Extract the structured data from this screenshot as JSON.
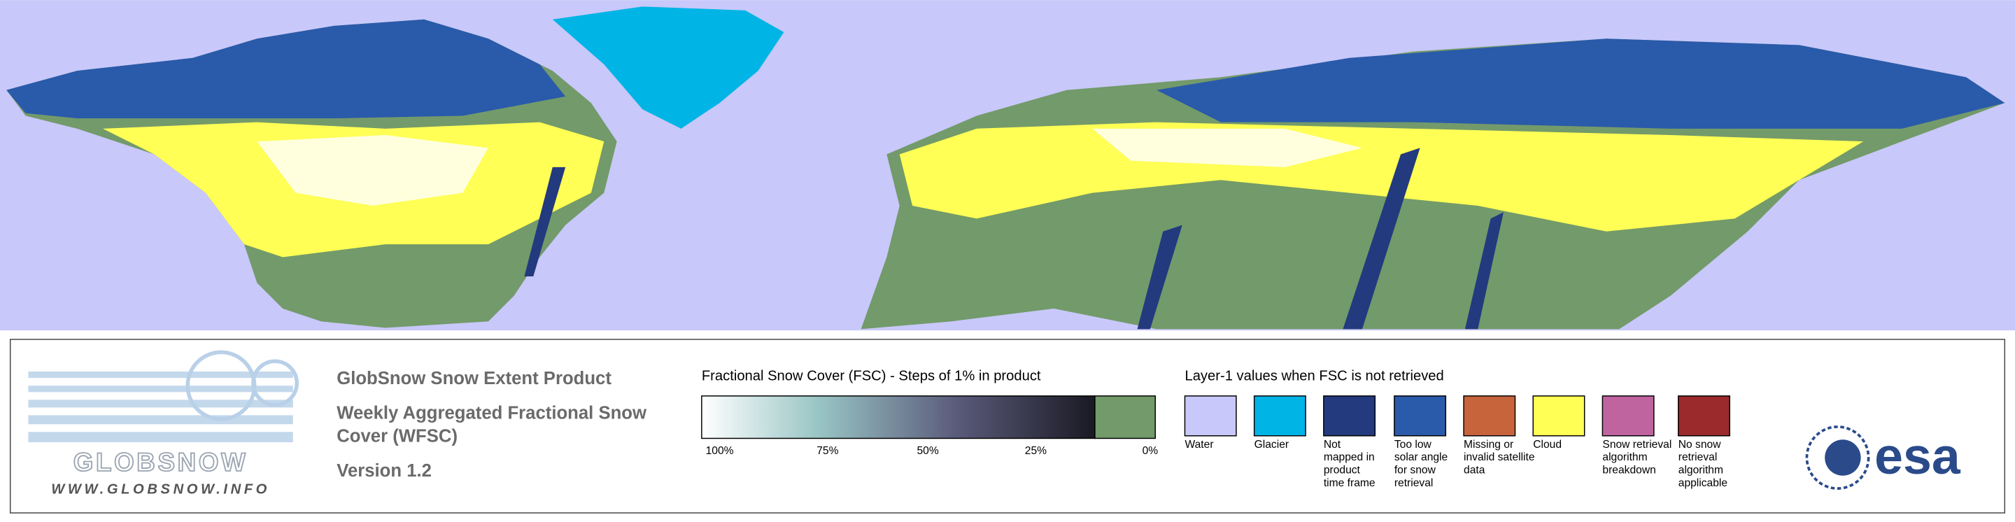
{
  "logo": {
    "name": "GLOBSNOW",
    "url": "WWW.GLOBSNOW.INFO"
  },
  "header": {
    "product": "GlobSnow Snow Extent Product",
    "subtitle_lines": [
      "Weekly Aggregated Fractional Snow",
      "Cover (WFSC)"
    ],
    "version": "Version 1.2"
  },
  "colorbar": {
    "title": "Fractional Snow Cover (FSC) - Steps of 1% in product",
    "ticks": [
      "100%",
      "75%",
      "50%",
      "25%",
      "0%"
    ]
  },
  "layer_legend": {
    "title": "Layer-1 values when FSC is not retrieved",
    "items": [
      {
        "lines": [
          "Water"
        ],
        "color": "#c8c8fa"
      },
      {
        "lines": [
          "Glacier"
        ],
        "color": "#00b4e6"
      },
      {
        "lines": [
          "Not",
          "mapped in",
          "product",
          "time frame"
        ],
        "color": "#233a7e"
      },
      {
        "lines": [
          "Too low",
          "solar angle",
          "for snow",
          "retrieval"
        ],
        "color": "#2a5aaa"
      },
      {
        "lines": [
          "Missing or",
          "invalid satellite",
          "data"
        ],
        "color": "#c8643c"
      },
      {
        "lines": [
          "Cloud"
        ],
        "color": "#ffff55"
      },
      {
        "lines": [
          "Snow retrieval",
          "algorithm",
          "breakdown"
        ],
        "color": "#c064a0"
      },
      {
        "lines": [
          "No snow",
          "retrieval",
          "algorithm",
          "applicable"
        ],
        "color": "#9a2a2c"
      }
    ]
  },
  "agency": "esa"
}
